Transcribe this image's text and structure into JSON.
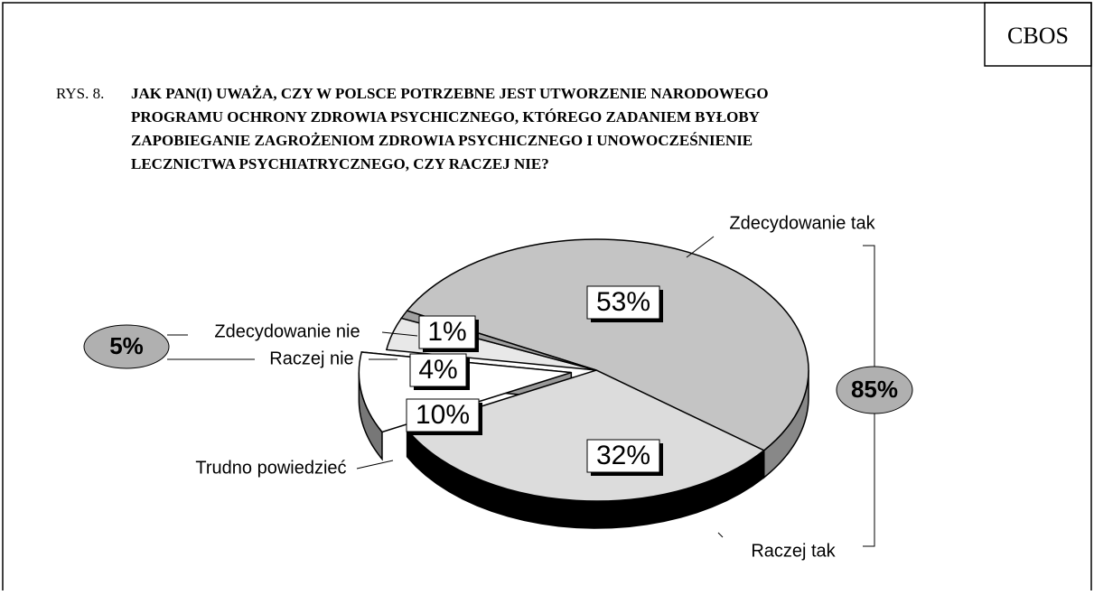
{
  "header": "CBOS",
  "chart_data": {
    "type": "pie",
    "figure_number": "RYS. 8.",
    "title_lines": [
      "JAK PAN(I) UWAŻA, CZY W POLSCE POTRZEBNE JEST UTWORZENIE NARODOWEGO",
      "PROGRAMU OCHRONY ZDROWIA PSYCHICZNEGO, KTÓREGO ZADANIEM BYŁOBY",
      "ZAPOBIEGANIE ZAGROŻENIOM ZDROWIA PSYCHICZNEGO I UNOWOCZEŚNIENIE",
      "LECZNICTWA PSYCHIATRYCZNEGO, CZY RACZEJ NIE?"
    ],
    "categories": [
      "Zdecydowanie tak",
      "Raczej tak",
      "Trudno powiedzieć",
      "Raczej nie",
      "Zdecydowanie nie"
    ],
    "values": [
      53,
      32,
      10,
      4,
      1
    ],
    "value_labels": [
      "53%",
      "32%",
      "10%",
      "4%",
      "1%"
    ],
    "colors": [
      "#c4c4c4",
      "#dcdcdc",
      "#ffffff",
      "#e8e8e8",
      "#a0a0a0"
    ],
    "group_labels": [
      "85%",
      "5%"
    ]
  }
}
